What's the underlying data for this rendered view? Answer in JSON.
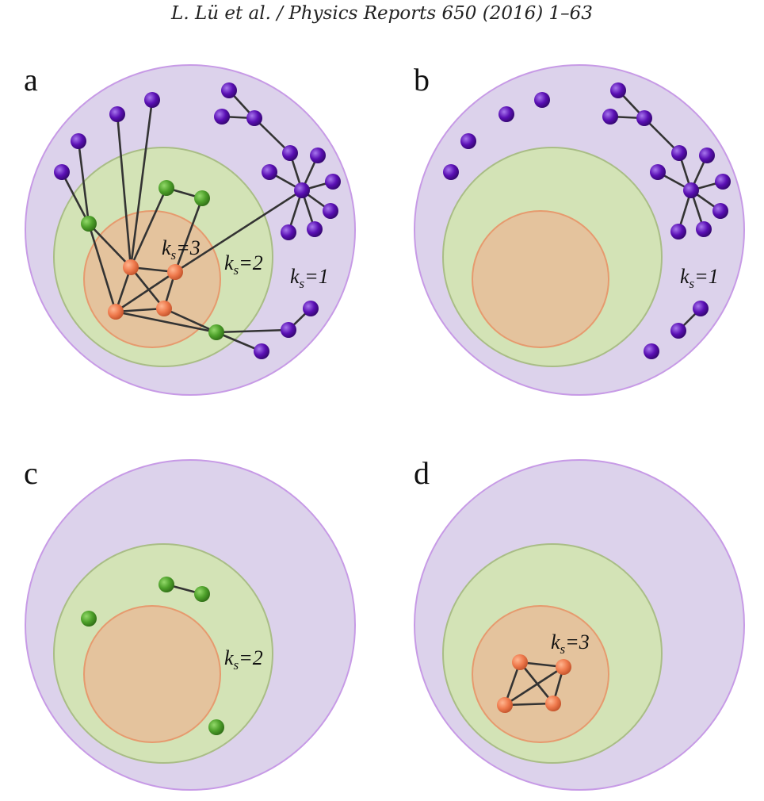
{
  "header": {
    "running_head": "L. Lü et al. / Physics Reports 650 (2016) 1–63"
  },
  "colors": {
    "shell1_fill": "#dcd2eb",
    "shell1_stroke": "#c79ae6",
    "shell2_fill": "#d3e3b6",
    "shell2_stroke": "#a9bd86",
    "shell3_fill": "#e4c39d",
    "shell3_stroke": "#e69a6e",
    "node_purple": "#5a0fb4",
    "node_green": "#4da02a",
    "node_orange": "#ef7a4d"
  },
  "panels": [
    {
      "letter": "a",
      "labels": [
        {
          "k": "k",
          "s": "s",
          "eq": "=3"
        },
        {
          "k": "k",
          "s": "s",
          "eq": "=2"
        },
        {
          "k": "k",
          "s": "s",
          "eq": "=1"
        }
      ]
    },
    {
      "letter": "b",
      "labels": [
        {
          "k": "k",
          "s": "s",
          "eq": "=1"
        }
      ]
    },
    {
      "letter": "c",
      "labels": [
        {
          "k": "k",
          "s": "s",
          "eq": "=2"
        }
      ]
    },
    {
      "letter": "d",
      "labels": [
        {
          "k": "k",
          "s": "s",
          "eq": "=3"
        }
      ]
    }
  ]
}
